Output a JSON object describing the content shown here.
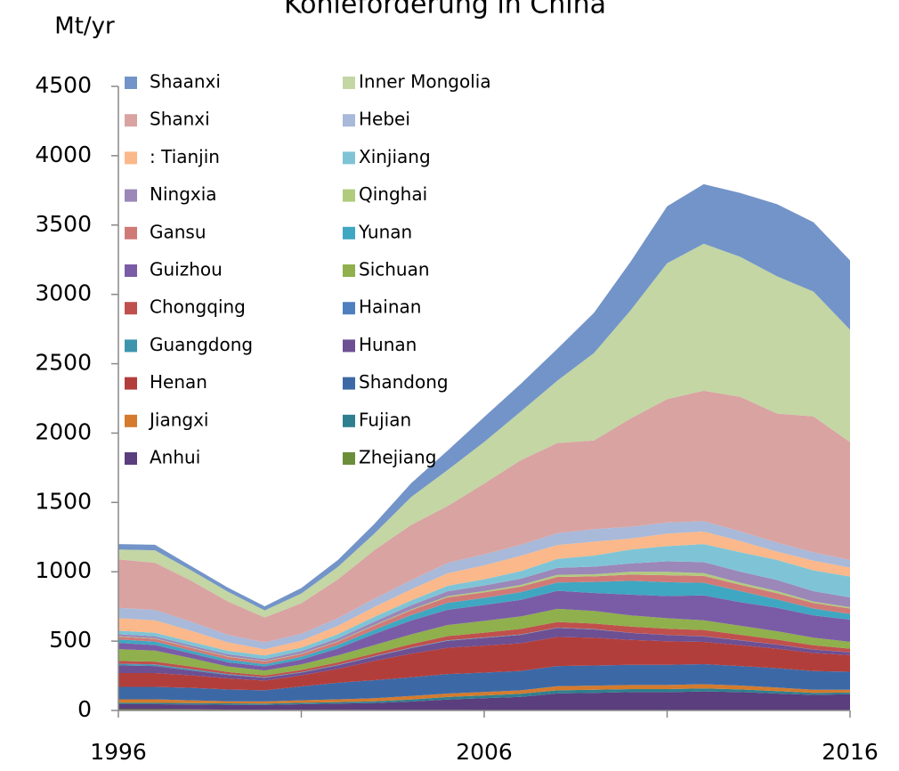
{
  "chart_data": {
    "type": "stacked_area",
    "title": "Kohleförderung in China",
    "y_label": "Mt/yr",
    "x": [
      1996,
      1997,
      1998,
      1999,
      2000,
      2001,
      2002,
      2003,
      2004,
      2005,
      2006,
      2007,
      2008,
      2009,
      2010,
      2011,
      2012,
      2013,
      2014,
      2015,
      2016
    ],
    "xlim": [
      1996,
      2016
    ],
    "xticks": [
      1996,
      {
        "value": 2001,
        "label": null
      },
      2006,
      {
        "value": 2011,
        "label": null
      },
      2016
    ],
    "ylim": [
      0,
      4500
    ],
    "yticks": [
      0,
      500,
      1000,
      1500,
      2000,
      2500,
      3000,
      3500,
      4000,
      4500
    ],
    "legend": "top-left",
    "series": [
      {
        "name": "Shaanxi",
        "color": "#7394c8",
        "values": [
          40,
          40,
          30,
          30,
          30,
          40,
          50,
          70,
          100,
          140,
          180,
          200,
          230,
          290,
          350,
          410,
          430,
          460,
          520,
          500,
          500
        ]
      },
      {
        "name": "Inner Mongolia",
        "color": "#c3d6a4",
        "values": [
          70,
          90,
          75,
          70,
          50,
          70,
          90,
          120,
          200,
          260,
          300,
          350,
          450,
          630,
          780,
          980,
          1060,
          1010,
          990,
          900,
          810
        ]
      },
      {
        "name": "Shanxi",
        "color": "#d9a3a2",
        "values": [
          350,
          340,
          295,
          240,
          180,
          220,
          280,
          350,
          400,
          410,
          510,
          610,
          650,
          640,
          780,
          890,
          940,
          970,
          930,
          980,
          850
        ]
      },
      {
        "name": "Hebei",
        "color": "#a8b9d9",
        "values": [
          75,
          75,
          65,
          55,
          50,
          50,
          55,
          60,
          65,
          75,
          80,
          80,
          85,
          90,
          85,
          80,
          75,
          70,
          65,
          60,
          55
        ]
      },
      {
        "name": ": Tianjin",
        "color": "#fbb88a",
        "values": [
          90,
          90,
          80,
          60,
          45,
          50,
          60,
          70,
          80,
          90,
          100,
          110,
          100,
          100,
          80,
          90,
          90,
          80,
          60,
          70,
          65
        ]
      },
      {
        "name": "Xinjiang",
        "color": "#7fc4d6",
        "values": [
          25,
          25,
          25,
          25,
          25,
          25,
          30,
          35,
          35,
          40,
          45,
          55,
          65,
          80,
          100,
          110,
          130,
          140,
          145,
          150,
          150
        ]
      },
      {
        "name": "Ningxia",
        "color": "#9b87b8",
        "values": [
          15,
          15,
          15,
          15,
          15,
          18,
          20,
          25,
          30,
          35,
          40,
          45,
          50,
          55,
          60,
          75,
          80,
          80,
          80,
          75,
          70
        ]
      },
      {
        "name": "Qinghai",
        "color": "#b0cb7d",
        "values": [
          3,
          3,
          3,
          3,
          3,
          3,
          3,
          4,
          5,
          8,
          10,
          12,
          15,
          15,
          20,
          25,
          20,
          15,
          15,
          10,
          10
        ]
      },
      {
        "name": "Gansu",
        "color": "#d07a78",
        "values": [
          20,
          20,
          20,
          20,
          20,
          20,
          25,
          30,
          35,
          40,
          40,
          40,
          40,
          40,
          45,
          50,
          50,
          45,
          45,
          40,
          40
        ]
      },
      {
        "name": "Yunan",
        "color": "#3fa7c1",
        "values": [
          25,
          25,
          20,
          20,
          15,
          20,
          25,
          30,
          40,
          50,
          50,
          55,
          60,
          80,
          100,
          100,
          90,
          80,
          60,
          50,
          40
        ]
      },
      {
        "name": "Guizhou",
        "color": "#7a5ca6",
        "values": [
          45,
          40,
          35,
          30,
          30,
          35,
          50,
          80,
          100,
          110,
          115,
          120,
          130,
          130,
          150,
          160,
          180,
          170,
          170,
          160,
          160
        ]
      },
      {
        "name": "Sichuan",
        "color": "#8fb04c",
        "values": [
          85,
          80,
          60,
          40,
          35,
          40,
          50,
          60,
          70,
          80,
          85,
          90,
          95,
          90,
          80,
          75,
          70,
          65,
          60,
          55,
          50
        ]
      },
      {
        "name": "Chongqing",
        "color": "#c0504d",
        "values": [
          20,
          20,
          18,
          15,
          14,
          15,
          18,
          20,
          25,
          30,
          35,
          40,
          40,
          40,
          45,
          45,
          45,
          40,
          35,
          30,
          25
        ]
      },
      {
        "name": "Hainan",
        "color": "#4f7fbf",
        "values": [
          2,
          2,
          2,
          1,
          1,
          1,
          1,
          1,
          1,
          1,
          1,
          1,
          1,
          1,
          1,
          1,
          1,
          1,
          1,
          1,
          1
        ]
      },
      {
        "name": "Guangdong",
        "color": "#3c95ad",
        "values": [
          10,
          10,
          8,
          5,
          3,
          3,
          3,
          3,
          3,
          3,
          2,
          2,
          2,
          2,
          0,
          0,
          0,
          0,
          0,
          0,
          0
        ]
      },
      {
        "name": "Hunan",
        "color": "#6d4f93",
        "values": [
          55,
          50,
          35,
          25,
          20,
          20,
          25,
          30,
          40,
          50,
          55,
          60,
          65,
          60,
          50,
          45,
          40,
          35,
          30,
          25,
          20
        ]
      },
      {
        "name": "Henan",
        "color": "#b23e3b",
        "values": [
          100,
          100,
          90,
          80,
          70,
          80,
          100,
          140,
          170,
          190,
          195,
          200,
          210,
          200,
          180,
          170,
          160,
          150,
          140,
          130,
          120
        ]
      },
      {
        "name": "Shandong",
        "color": "#3c69a6",
        "values": [
          90,
          90,
          90,
          85,
          80,
          100,
          120,
          130,
          135,
          140,
          140,
          140,
          145,
          145,
          145,
          145,
          145,
          140,
          140,
          135,
          130
        ]
      },
      {
        "name": "Jiangxi",
        "color": "#d47b2e",
        "values": [
          25,
          25,
          20,
          15,
          15,
          18,
          20,
          22,
          25,
          25,
          25,
          25,
          30,
          30,
          30,
          30,
          30,
          28,
          25,
          22,
          20
        ]
      },
      {
        "name": "Fujian",
        "color": "#2f7f8f",
        "values": [
          10,
          10,
          10,
          10,
          10,
          10,
          10,
          12,
          15,
          18,
          20,
          22,
          22,
          22,
          22,
          22,
          22,
          20,
          18,
          15,
          12
        ]
      },
      {
        "name": "Anhui",
        "color": "#5a3e7e",
        "values": [
          35,
          35,
          35,
          35,
          35,
          40,
          45,
          50,
          60,
          75,
          85,
          95,
          120,
          125,
          130,
          130,
          135,
          130,
          120,
          110,
          115
        ]
      },
      {
        "name": "Zhejiang",
        "color": "#6c8e3a",
        "values": [
          10,
          10,
          8,
          6,
          5,
          5,
          5,
          4,
          4,
          4,
          3,
          3,
          3,
          2,
          2,
          2,
          2,
          2,
          2,
          2,
          2
        ]
      }
    ]
  }
}
